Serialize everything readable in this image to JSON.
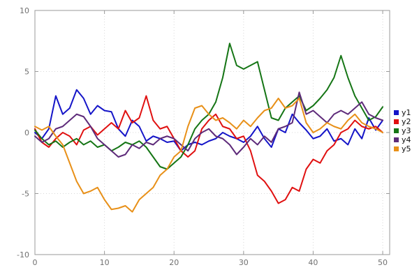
{
  "chart_data": {
    "type": "line",
    "title": "",
    "xlabel": "",
    "ylabel": "",
    "xlim": [
      0,
      51
    ],
    "ylim": [
      -10,
      10
    ],
    "xticks": [
      0,
      10,
      20,
      30,
      40,
      50
    ],
    "yticks": [
      -10,
      -5,
      0,
      5,
      10
    ],
    "grid": "dotted",
    "legend_position": "right-outside",
    "x_step": 1,
    "series": [
      {
        "name": "y1",
        "color": "#1515c8",
        "values": [
          0,
          -0.5,
          0.3,
          3,
          1.5,
          2,
          3.5,
          2.8,
          1.5,
          2.2,
          1.8,
          1.7,
          0.3,
          -0.3,
          1,
          0.5,
          -0.7,
          -0.3,
          -0.5,
          -0.8,
          -0.7,
          -1.5,
          -1,
          -0.8,
          -1,
          -0.7,
          -0.5,
          0,
          -0.3,
          -0.5,
          -0.8,
          -0.3,
          0.5,
          -0.5,
          -1.2,
          0.3,
          0,
          1.5,
          0.8,
          0.2,
          -0.5,
          -0.3,
          0.3,
          -0.7,
          -0.5,
          -1,
          0.3,
          -0.5,
          1.2,
          0.2,
          1
        ]
      },
      {
        "name": "y2",
        "color": "#e01010",
        "values": [
          0.3,
          -0.8,
          -1.2,
          -0.5,
          0,
          -0.3,
          -1,
          0.2,
          0.5,
          -0.2,
          0.3,
          0.8,
          0.3,
          1.8,
          0.8,
          1.2,
          3,
          1,
          0.3,
          0.5,
          -0.5,
          -1.5,
          -2,
          -1.5,
          0.3,
          1,
          1.5,
          0.5,
          0.3,
          -0.5,
          -0.3,
          -1.5,
          -3.5,
          -4,
          -4.8,
          -5.8,
          -5.5,
          -4.5,
          -4.8,
          -3,
          -2.2,
          -2.5,
          -1.5,
          -1,
          0,
          0.3,
          1,
          0.5,
          0.3,
          0.5,
          0
        ]
      },
      {
        "name": "y3",
        "color": "#157515",
        "values": [
          0.2,
          -0.5,
          -1,
          -0.7,
          -1.2,
          -0.8,
          -0.5,
          -1,
          -0.7,
          -1.2,
          -1,
          -1.5,
          -1.2,
          -0.8,
          -1,
          -0.7,
          -1.2,
          -2,
          -2.8,
          -3,
          -2.5,
          -2,
          -1,
          0.3,
          1,
          1.5,
          2.5,
          4.5,
          7.3,
          5.5,
          5.2,
          5.5,
          5.8,
          3.5,
          1.2,
          1,
          2,
          2.5,
          3,
          1.8,
          2.2,
          2.8,
          3.5,
          4.5,
          6.3,
          4.5,
          3,
          2,
          1,
          1.3,
          2.1
        ]
      },
      {
        "name": "y4",
        "color": "#5e2b7a",
        "values": [
          -0.3,
          -0.8,
          -0.5,
          0.3,
          0.5,
          1,
          1.5,
          1.3,
          0.5,
          -0.5,
          -1,
          -1.5,
          -2,
          -1.8,
          -1,
          -1.3,
          -0.8,
          -1,
          -0.5,
          -0.3,
          -0.5,
          -1,
          -1.5,
          -0.5,
          0,
          0.3,
          -0.3,
          -0.5,
          -1,
          -1.8,
          -1.2,
          -0.5,
          -1,
          -0.3,
          -0.8,
          0.3,
          0.5,
          0.8,
          3.3,
          1.5,
          1.8,
          1.3,
          0.8,
          1.5,
          1.8,
          1.5,
          2,
          2.5,
          1.5,
          1.2,
          1
        ]
      },
      {
        "name": "y5",
        "color": "#e89018",
        "values": [
          0.5,
          0.2,
          0.5,
          -0.3,
          -1,
          -2.5,
          -4,
          -5,
          -4.8,
          -4.5,
          -5.5,
          -6.3,
          -6.2,
          -6,
          -6.5,
          -5.5,
          -5,
          -4.5,
          -3.5,
          -3,
          -2,
          -1.5,
          0.5,
          2,
          2.2,
          1.5,
          1,
          1.2,
          0.8,
          0.3,
          1,
          0.5,
          1.2,
          1.8,
          2,
          2.8,
          2,
          2.2,
          2.8,
          0.8,
          0,
          0.3,
          0.8,
          0.5,
          0.3,
          1,
          1.5,
          0.8,
          0.5,
          0.3,
          0
        ]
      }
    ],
    "style": {
      "grid_color": "#d8d8d8",
      "border_color": "#9a9a9a",
      "tick_text_color": "#707070",
      "legend_text_color": "#111111",
      "background": "#ffffff",
      "line_width": 2
    }
  }
}
